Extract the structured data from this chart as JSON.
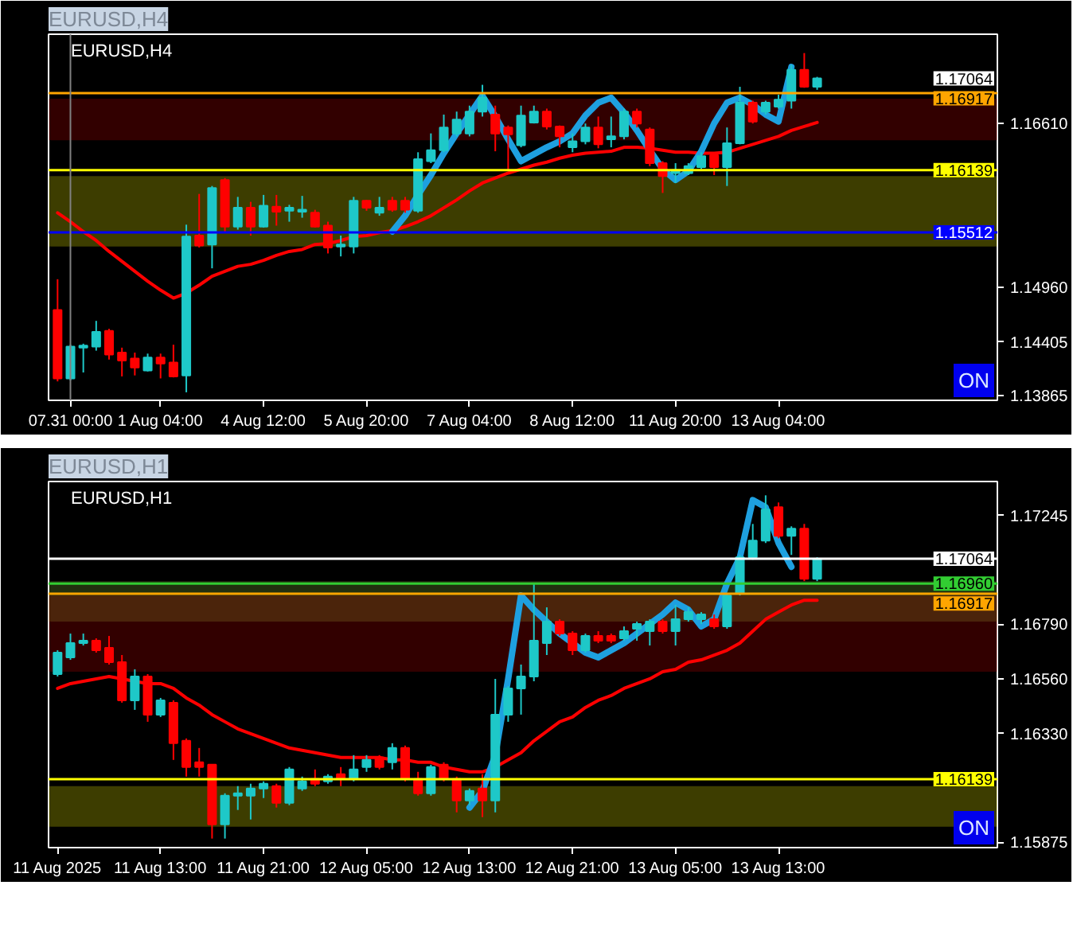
{
  "chart_data": [
    {
      "type": "candlestick",
      "title": "EURUSD,H4",
      "categories": [
        null,
        "07.31 00:00",
        null,
        null,
        null,
        null,
        null,
        null,
        "1 Aug 04:00",
        null,
        null,
        null,
        null,
        null,
        null,
        null,
        "4 Aug 12:00",
        null,
        null,
        null,
        null,
        null,
        null,
        null,
        "5 Aug 20:00",
        null,
        null,
        null,
        null,
        null,
        null,
        null,
        "7 Aug 04:00",
        null,
        null,
        null,
        null,
        null,
        null,
        null,
        "8 Aug 12:00",
        null,
        null,
        null,
        null,
        null,
        null,
        null,
        "11 Aug 20:00",
        null,
        null,
        null,
        null,
        null,
        null,
        null,
        "13 Aug 04:00",
        null,
        null,
        null
      ],
      "ohlc": [
        [
          1.1473,
          1.1504,
          1.1401,
          1.1404
        ],
        [
          1.1404,
          1.1438,
          1.1402,
          1.1436
        ],
        [
          1.1435,
          1.1439,
          1.141,
          1.1437
        ],
        [
          1.1436,
          1.1462,
          1.1432,
          1.1451
        ],
        [
          1.1452,
          1.1454,
          1.1423,
          1.1428
        ],
        [
          1.143,
          1.1435,
          1.1406,
          1.1422
        ],
        [
          1.1424,
          1.143,
          1.1407,
          1.1415
        ],
        [
          1.1412,
          1.1429,
          1.1411,
          1.1425
        ],
        [
          1.1425,
          1.1429,
          1.1404,
          1.1419
        ],
        [
          1.142,
          1.1438,
          1.1405,
          1.1406
        ],
        [
          1.1407,
          1.1559,
          1.139,
          1.1547
        ],
        [
          1.1548,
          1.159,
          1.1536,
          1.1538
        ],
        [
          1.1539,
          1.1598,
          1.1515,
          1.1596
        ],
        [
          1.1604,
          1.1606,
          1.1552,
          1.1557
        ],
        [
          1.1557,
          1.1587,
          1.1554,
          1.1576
        ],
        [
          1.1576,
          1.1582,
          1.1548,
          1.1557
        ],
        [
          1.1557,
          1.1589,
          1.1556,
          1.1578
        ],
        [
          1.1577,
          1.1589,
          1.1558,
          1.1572
        ],
        [
          1.1573,
          1.1579,
          1.1562,
          1.1576
        ],
        [
          1.1572,
          1.1588,
          1.1566,
          1.1574
        ],
        [
          1.1571,
          1.1574,
          1.1556,
          1.1557
        ],
        [
          1.1558,
          1.1562,
          1.153,
          1.1536
        ],
        [
          1.1537,
          1.1548,
          1.1527,
          1.1539
        ],
        [
          1.1537,
          1.1587,
          1.153,
          1.1583
        ],
        [
          1.1583,
          1.1584,
          1.1573,
          1.1576
        ],
        [
          1.1571,
          1.1587,
          1.1568,
          1.1576
        ],
        [
          1.1583,
          1.1587,
          1.1572,
          1.1574
        ],
        [
          1.1583,
          1.1587,
          1.1571,
          1.1574
        ],
        [
          1.1573,
          1.1632,
          1.1571,
          1.1625
        ],
        [
          1.1623,
          1.1651,
          1.1621,
          1.1634
        ],
        [
          1.1634,
          1.167,
          1.1632,
          1.1657
        ],
        [
          1.1651,
          1.1673,
          1.1648,
          1.1665
        ],
        [
          1.1651,
          1.1679,
          1.1648,
          1.1673
        ],
        [
          1.1673,
          1.17,
          1.1668,
          1.1687
        ],
        [
          1.167,
          1.1679,
          1.1633,
          1.1651
        ],
        [
          1.1657,
          1.1659,
          1.1613,
          1.165
        ],
        [
          1.1639,
          1.1679,
          1.1637,
          1.1669
        ],
        [
          1.1662,
          1.1679,
          1.1661,
          1.1673
        ],
        [
          1.1673,
          1.1676,
          1.1655,
          1.1658
        ],
        [
          1.1658,
          1.1659,
          1.1637,
          1.1648
        ],
        [
          1.1637,
          1.1651,
          1.1632,
          1.1643
        ],
        [
          1.1643,
          1.1661,
          1.164,
          1.1657
        ],
        [
          1.1657,
          1.1668,
          1.1636,
          1.164
        ],
        [
          1.1645,
          1.1668,
          1.1637,
          1.1648
        ],
        [
          1.1648,
          1.1676,
          1.1645,
          1.1673
        ],
        [
          1.1673,
          1.1676,
          1.1657,
          1.1661
        ],
        [
          1.1655,
          1.1657,
          1.1618,
          1.1621
        ],
        [
          1.1621,
          1.1623,
          1.1591,
          1.1608
        ],
        [
          1.1611,
          1.1621,
          1.1601,
          1.1614
        ],
        [
          1.1611,
          1.1621,
          1.1609,
          1.1618
        ],
        [
          1.1617,
          1.1632,
          1.1615,
          1.1628
        ],
        [
          1.1629,
          1.163,
          1.1609,
          1.1617
        ],
        [
          1.1617,
          1.1657,
          1.1598,
          1.1641
        ],
        [
          1.1641,
          1.1698,
          1.164,
          1.1682
        ],
        [
          1.1682,
          1.1684,
          1.1661,
          1.1663
        ],
        [
          1.1673,
          1.1684,
          1.167,
          1.1682
        ],
        [
          1.1678,
          1.169,
          1.1676,
          1.1685
        ],
        [
          1.1684,
          1.172,
          1.1676,
          1.1715
        ],
        [
          1.1715,
          1.1732,
          1.1697,
          1.1698
        ],
        [
          1.1698,
          1.1708,
          1.1695,
          1.17064
        ]
      ],
      "colors": [
        "#ff0000",
        "#1ec8c8",
        "#1ec8c8",
        "#1ec8c8",
        "#ff0000",
        "#ff0000",
        "#ff0000",
        "#1ec8c8",
        "#ff0000",
        "#ff0000",
        "#1ec8c8",
        "#ff0000",
        "#1ec8c8",
        "#ff0000",
        "#1ec8c8",
        "#ff0000",
        "#1ec8c8",
        "#ff0000",
        "#1ec8c8",
        "#1ec8c8",
        "#ff0000",
        "#ff0000",
        "#1ec8c8",
        "#1ec8c8",
        "#ff0000",
        "#1ec8c8",
        "#ff0000",
        "#ff0000",
        "#1ec8c8",
        "#1ec8c8",
        "#1ec8c8",
        "#1ec8c8",
        "#1ec8c8",
        "#1ec8c8",
        "#ff0000",
        "#ff0000",
        "#1ec8c8",
        "#1ec8c8",
        "#ff0000",
        "#ff0000",
        "#1ec8c8",
        "#1ec8c8",
        "#ff0000",
        "#1ec8c8",
        "#1ec8c8",
        "#ff0000",
        "#ff0000",
        "#ff0000",
        "#1ec8c8",
        "#1ec8c8",
        "#1ec8c8",
        "#ff0000",
        "#1ec8c8",
        "#1ec8c8",
        "#ff0000",
        "#1ec8c8",
        "#1ec8c8",
        "#1ec8c8",
        "#ff0000",
        "#1ec8c8"
      ],
      "series": [
        {
          "type": "line",
          "color": "#ff0000",
          "values": [
            1.1571,
            1.1562,
            1.1552,
            1.1543,
            1.1532,
            1.1522,
            1.1512,
            1.1502,
            1.1493,
            1.1485,
            1.149,
            1.1498,
            1.1507,
            1.1512,
            1.1517,
            1.1519,
            1.1523,
            1.1528,
            1.1532,
            1.1534,
            1.1539,
            1.154,
            1.1543,
            1.1547,
            1.1548,
            1.1551,
            1.1553,
            1.1557,
            1.1562,
            1.1568,
            1.1576,
            1.1584,
            1.1593,
            1.1601,
            1.1606,
            1.1611,
            1.1615,
            1.1619,
            1.1622,
            1.1626,
            1.1629,
            1.1631,
            1.1632,
            1.1633,
            1.1637,
            1.1637,
            1.1636,
            1.1634,
            1.1632,
            1.1632,
            1.1631,
            1.1631,
            1.1632,
            1.1636,
            1.164,
            1.1644,
            1.1648,
            1.1654,
            1.1658,
            1.1662
          ]
        },
        {
          "type": "line",
          "color": "#1ea0e0",
          "values": [
            null,
            null,
            null,
            null,
            null,
            null,
            null,
            null,
            null,
            null,
            null,
            null,
            null,
            null,
            null,
            null,
            null,
            null,
            null,
            null,
            null,
            null,
            null,
            null,
            null,
            null,
            1.1552,
            1.1568,
            1.1589,
            1.1609,
            1.1631,
            1.1651,
            1.167,
            1.1689,
            1.1668,
            1.1645,
            1.1623,
            1.163,
            1.1637,
            1.1643,
            1.1651,
            1.1669,
            1.1682,
            1.1687,
            1.1672,
            1.1654,
            1.1634,
            1.1615,
            1.1604,
            1.1613,
            1.1633,
            1.1661,
            1.1682,
            1.1687,
            1.168,
            1.167,
            1.1663,
            1.1718,
            null,
            null
          ]
        }
      ],
      "ylim": [
        1.13819,
        1.1751
      ],
      "yticks": [
        {
          "value": 1.1661,
          "label": "1.16610"
        },
        {
          "value": 1.1496,
          "label": "1.14960"
        },
        {
          "value": 1.14405,
          "label": "1.14405"
        },
        {
          "value": 1.13865,
          "label": "1.13865"
        }
      ],
      "ref_lines": [
        {
          "axis": "y",
          "value": 1.16917,
          "label": "1.16917",
          "color": "#ffa500"
        },
        {
          "axis": "y",
          "value": 1.16139,
          "label": "1.16139",
          "color": "#ffff00"
        },
        {
          "axis": "y",
          "value": 1.15512,
          "label": "1.15512",
          "color": "#0000ff"
        },
        {
          "axis": "x",
          "value": "07.31 00:00",
          "color": "#808080"
        }
      ],
      "bands": [
        {
          "axis": "y",
          "from": 1.1644,
          "to": 1.1686,
          "color": "#d00000"
        },
        {
          "axis": "y",
          "from": 1.1537,
          "to": 1.1608,
          "color": "#ffff00"
        }
      ],
      "annotations": [
        "1.17064",
        "ON"
      ]
    },
    {
      "type": "candlestick",
      "title": "EURUSD,H1",
      "categories": [
        "11 Aug 2025",
        null,
        null,
        null,
        null,
        null,
        null,
        null,
        "11 Aug 13:00",
        null,
        null,
        null,
        null,
        null,
        null,
        null,
        "11 Aug 21:00",
        null,
        null,
        null,
        null,
        null,
        null,
        null,
        "12 Aug 05:00",
        null,
        null,
        null,
        null,
        null,
        null,
        null,
        "12 Aug 13:00",
        null,
        null,
        null,
        null,
        null,
        null,
        null,
        "12 Aug 21:00",
        null,
        null,
        null,
        null,
        null,
        null,
        null,
        "13 Aug 05:00",
        null,
        null,
        null,
        null,
        null,
        null,
        null,
        "13 Aug 13:00",
        null,
        null,
        null
      ],
      "ohlc": [
        [
          1.1658,
          1.1668,
          1.1657,
          1.1667
        ],
        [
          1.1665,
          1.1675,
          1.1664,
          1.1671
        ],
        [
          1.1671,
          1.1675,
          1.167,
          1.1672
        ],
        [
          1.1672,
          1.1673,
          1.1667,
          1.1668
        ],
        [
          1.1669,
          1.1674,
          1.1662,
          1.1663
        ],
        [
          1.1663,
          1.1666,
          1.1646,
          1.1647
        ],
        [
          1.1647,
          1.166,
          1.1643,
          1.1657
        ],
        [
          1.1657,
          1.1658,
          1.1638,
          1.1641
        ],
        [
          1.1641,
          1.1648,
          1.164,
          1.1647
        ],
        [
          1.1646,
          1.1647,
          1.1622,
          1.1629
        ],
        [
          1.163,
          1.1631,
          1.1615,
          1.1619
        ],
        [
          1.1621,
          1.1627,
          1.1615,
          1.1619
        ],
        [
          1.162,
          1.162,
          1.1589,
          1.1595
        ],
        [
          1.1595,
          1.1608,
          1.1589,
          1.1607
        ],
        [
          1.1607,
          1.1611,
          1.1601,
          1.1608
        ],
        [
          1.1607,
          1.1612,
          1.1597,
          1.161
        ],
        [
          1.161,
          1.1613,
          1.1606,
          1.1612
        ],
        [
          1.1611,
          1.1612,
          1.1602,
          1.1604
        ],
        [
          1.1604,
          1.1619,
          1.1603,
          1.1618
        ],
        [
          1.161,
          1.1615,
          1.1609,
          1.1613
        ],
        [
          1.1614,
          1.1618,
          1.1611,
          1.1612
        ],
        [
          1.1613,
          1.1616,
          1.1612,
          1.1615
        ],
        [
          1.1616,
          1.1619,
          1.1611,
          1.1614
        ],
        [
          1.1614,
          1.1624,
          1.1613,
          1.1618
        ],
        [
          1.1619,
          1.1624,
          1.1617,
          1.1622
        ],
        [
          1.1623,
          1.1624,
          1.1618,
          1.1619
        ],
        [
          1.1621,
          1.1629,
          1.1618,
          1.1627
        ],
        [
          1.1627,
          1.1628,
          1.1613,
          1.1614
        ],
        [
          1.1614,
          1.1617,
          1.1607,
          1.1608
        ],
        [
          1.1608,
          1.162,
          1.1607,
          1.1619
        ],
        [
          1.162,
          1.1621,
          1.1613,
          1.1614
        ],
        [
          1.1614,
          1.1615,
          1.16,
          1.1605
        ],
        [
          1.1605,
          1.161,
          1.1603,
          1.1609
        ],
        [
          1.161,
          1.1616,
          1.1598,
          1.1605
        ],
        [
          1.1605,
          1.1656,
          1.16,
          1.1641
        ],
        [
          1.1641,
          1.1653,
          1.1638,
          1.1652
        ],
        [
          1.1652,
          1.1662,
          1.1641,
          1.1657
        ],
        [
          1.1657,
          1.1696,
          1.1655,
          1.1672
        ],
        [
          1.1671,
          1.1686,
          1.1666,
          1.168
        ],
        [
          1.168,
          1.1681,
          1.1674,
          1.1675
        ],
        [
          1.1675,
          1.1676,
          1.1666,
          1.1668
        ],
        [
          1.1668,
          1.1675,
          1.1667,
          1.1674
        ],
        [
          1.1674,
          1.1676,
          1.1671,
          1.1672
        ],
        [
          1.1674,
          1.1675,
          1.1671,
          1.1672
        ],
        [
          1.1673,
          1.1678,
          1.1672,
          1.1676
        ],
        [
          1.1677,
          1.168,
          1.1672,
          1.1679
        ],
        [
          1.1676,
          1.1681,
          1.167,
          1.168
        ],
        [
          1.168,
          1.1681,
          1.1675,
          1.1676
        ],
        [
          1.1676,
          1.1687,
          1.167,
          1.1681
        ],
        [
          1.1681,
          1.1686,
          1.168,
          1.1684
        ],
        [
          1.1681,
          1.1684,
          1.1679,
          1.1683
        ],
        [
          1.1681,
          1.1683,
          1.1677,
          1.1678
        ],
        [
          1.1678,
          1.1692,
          1.1677,
          1.1691
        ],
        [
          1.1692,
          1.1708,
          1.1691,
          1.1707
        ],
        [
          1.1707,
          1.1721,
          1.1706,
          1.1714
        ],
        [
          1.1714,
          1.1733,
          1.1713,
          1.1727
        ],
        [
          1.1728,
          1.173,
          1.1715,
          1.1716
        ],
        [
          1.1716,
          1.172,
          1.1708,
          1.1719
        ],
        [
          1.1719,
          1.1721,
          1.1697,
          1.1698
        ],
        [
          1.1698,
          1.1707,
          1.1697,
          1.17064
        ]
      ],
      "colors": [
        "#1ec8c8",
        "#1ec8c8",
        "#1ec8c8",
        "#ff0000",
        "#ff0000",
        "#ff0000",
        "#1ec8c8",
        "#ff0000",
        "#1ec8c8",
        "#ff0000",
        "#ff0000",
        "#ff0000",
        "#ff0000",
        "#1ec8c8",
        "#1ec8c8",
        "#1ec8c8",
        "#1ec8c8",
        "#ff0000",
        "#1ec8c8",
        "#1ec8c8",
        "#ff0000",
        "#1ec8c8",
        "#ff0000",
        "#1ec8c8",
        "#1ec8c8",
        "#ff0000",
        "#1ec8c8",
        "#ff0000",
        "#ff0000",
        "#1ec8c8",
        "#ff0000",
        "#ff0000",
        "#1ec8c8",
        "#ff0000",
        "#1ec8c8",
        "#1ec8c8",
        "#1ec8c8",
        "#1ec8c8",
        "#1ec8c8",
        "#ff0000",
        "#ff0000",
        "#1ec8c8",
        "#ff0000",
        "#ff0000",
        "#1ec8c8",
        "#1ec8c8",
        "#1ec8c8",
        "#ff0000",
        "#1ec8c8",
        "#1ec8c8",
        "#1ec8c8",
        "#ff0000",
        "#1ec8c8",
        "#1ec8c8",
        "#1ec8c8",
        "#1ec8c8",
        "#ff0000",
        "#1ec8c8",
        "#ff0000",
        "#1ec8c8"
      ],
      "series": [
        {
          "type": "line",
          "color": "#ff0000",
          "values": [
            1.1652,
            1.1654,
            1.1655,
            1.1656,
            1.1657,
            1.1656,
            1.1655,
            1.1654,
            1.1654,
            1.1652,
            1.1648,
            1.1645,
            1.1641,
            1.1638,
            1.1635,
            1.1633,
            1.1631,
            1.1629,
            1.1627,
            1.1626,
            1.1625,
            1.1624,
            1.1623,
            1.1623,
            1.1623,
            1.1623,
            1.1622,
            1.1622,
            1.1621,
            1.1621,
            1.1619,
            1.1618,
            1.1617,
            1.1617,
            1.1619,
            1.1622,
            1.1625,
            1.163,
            1.1634,
            1.1638,
            1.164,
            1.1644,
            1.1647,
            1.1649,
            1.1652,
            1.1654,
            1.1656,
            1.1659,
            1.166,
            1.1663,
            1.1664,
            1.1666,
            1.1668,
            1.1671,
            1.1676,
            1.1681,
            1.1684,
            1.1687,
            1.1689,
            1.1689
          ]
        },
        {
          "type": "line",
          "color": "#1ea0e0",
          "values": [
            null,
            null,
            null,
            null,
            null,
            null,
            null,
            null,
            null,
            null,
            null,
            null,
            null,
            null,
            null,
            null,
            null,
            null,
            null,
            null,
            null,
            null,
            null,
            null,
            null,
            null,
            null,
            null,
            null,
            null,
            null,
            null,
            1.1602,
            1.1609,
            1.1624,
            1.1656,
            1.1691,
            1.1685,
            1.168,
            1.1675,
            1.1671,
            1.1667,
            1.1665,
            1.1668,
            1.1671,
            1.1675,
            1.1679,
            1.1683,
            1.1688,
            1.1685,
            1.1678,
            1.1681,
            1.1696,
            1.1707,
            1.1731,
            1.1728,
            1.1713,
            1.1703,
            null,
            null
          ]
        }
      ],
      "ylim": [
        1.15852,
        1.17388
      ],
      "yticks": [
        {
          "value": 1.17245,
          "label": "1.17245"
        },
        {
          "value": 1.1679,
          "label": "1.16790"
        },
        {
          "value": 1.1656,
          "label": "1.16560"
        },
        {
          "value": 1.1633,
          "label": "1.16330"
        },
        {
          "value": 1.15875,
          "label": "1.15875"
        }
      ],
      "ref_lines": [
        {
          "axis": "y",
          "value": 1.17064,
          "label": "1.17064",
          "color": "#ffffff"
        },
        {
          "axis": "y",
          "value": 1.1696,
          "label": "1.16960",
          "color": "#32cd32"
        },
        {
          "axis": "y",
          "value": 1.16917,
          "label": "1.16917",
          "color": "#ffa500"
        },
        {
          "axis": "y",
          "value": 1.16139,
          "label": "1.16139",
          "color": "#ffff00"
        }
      ],
      "bands": [
        {
          "axis": "y",
          "from": 1.168,
          "to": 1.1697,
          "color": "#90c840"
        },
        {
          "axis": "y",
          "from": 1.1659,
          "to": 1.1691,
          "color": "#d00000"
        },
        {
          "axis": "y",
          "from": 1.1594,
          "to": 1.1611,
          "color": "#ffff00"
        }
      ],
      "annotations": [
        "ON"
      ]
    }
  ]
}
